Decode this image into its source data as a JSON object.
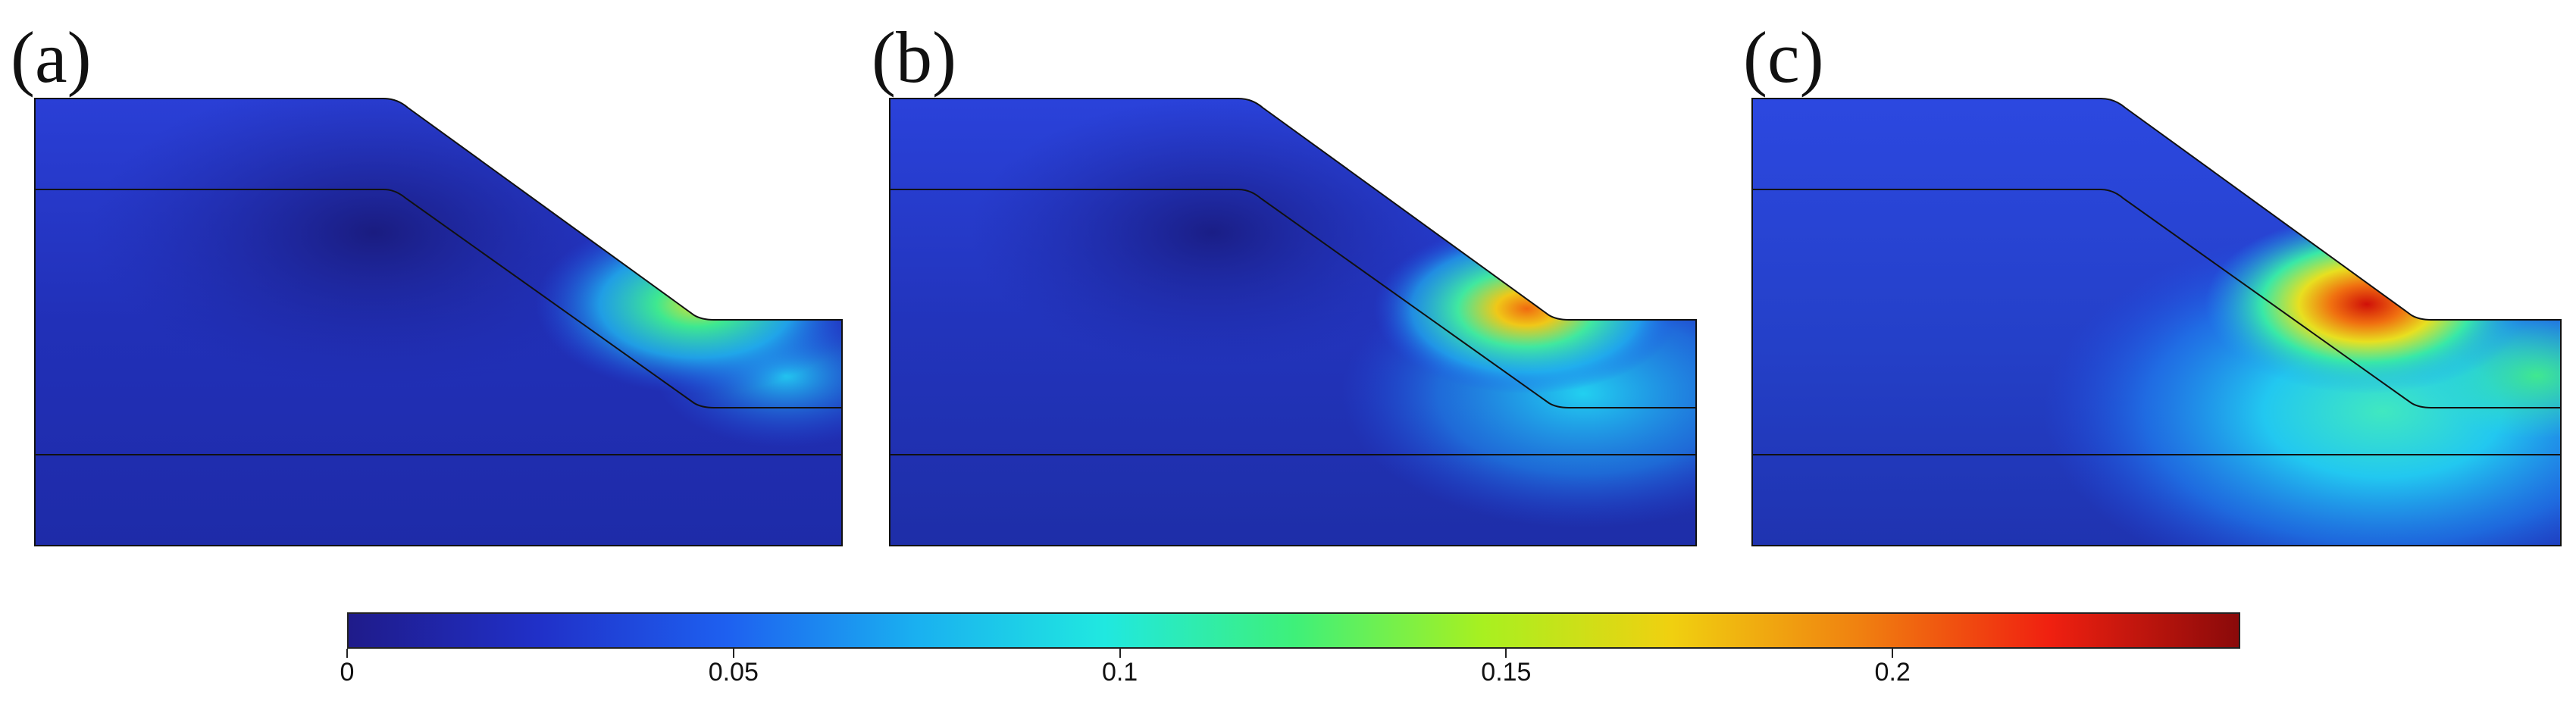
{
  "panels": [
    {
      "label": "(a)"
    },
    {
      "label": "(b)"
    },
    {
      "label": "(c)"
    }
  ],
  "colorbar": {
    "min": 0,
    "max": 0.245,
    "ticks": [
      "0",
      "0.05",
      "0.1",
      "0.15",
      "0.2"
    ],
    "tick_values": [
      0,
      0.05,
      0.1,
      0.15,
      0.2
    ],
    "colormap": "jet",
    "stops": [
      "#1f1b8a",
      "#2030c8",
      "#1e60f0",
      "#1ab0f0",
      "#20e8e0",
      "#3ef07a",
      "#a8f020",
      "#f0d010",
      "#f08010",
      "#f02010",
      "#8a0a0a"
    ]
  },
  "colors": {
    "background_field": "#2433c0",
    "outline": "#111111"
  }
}
